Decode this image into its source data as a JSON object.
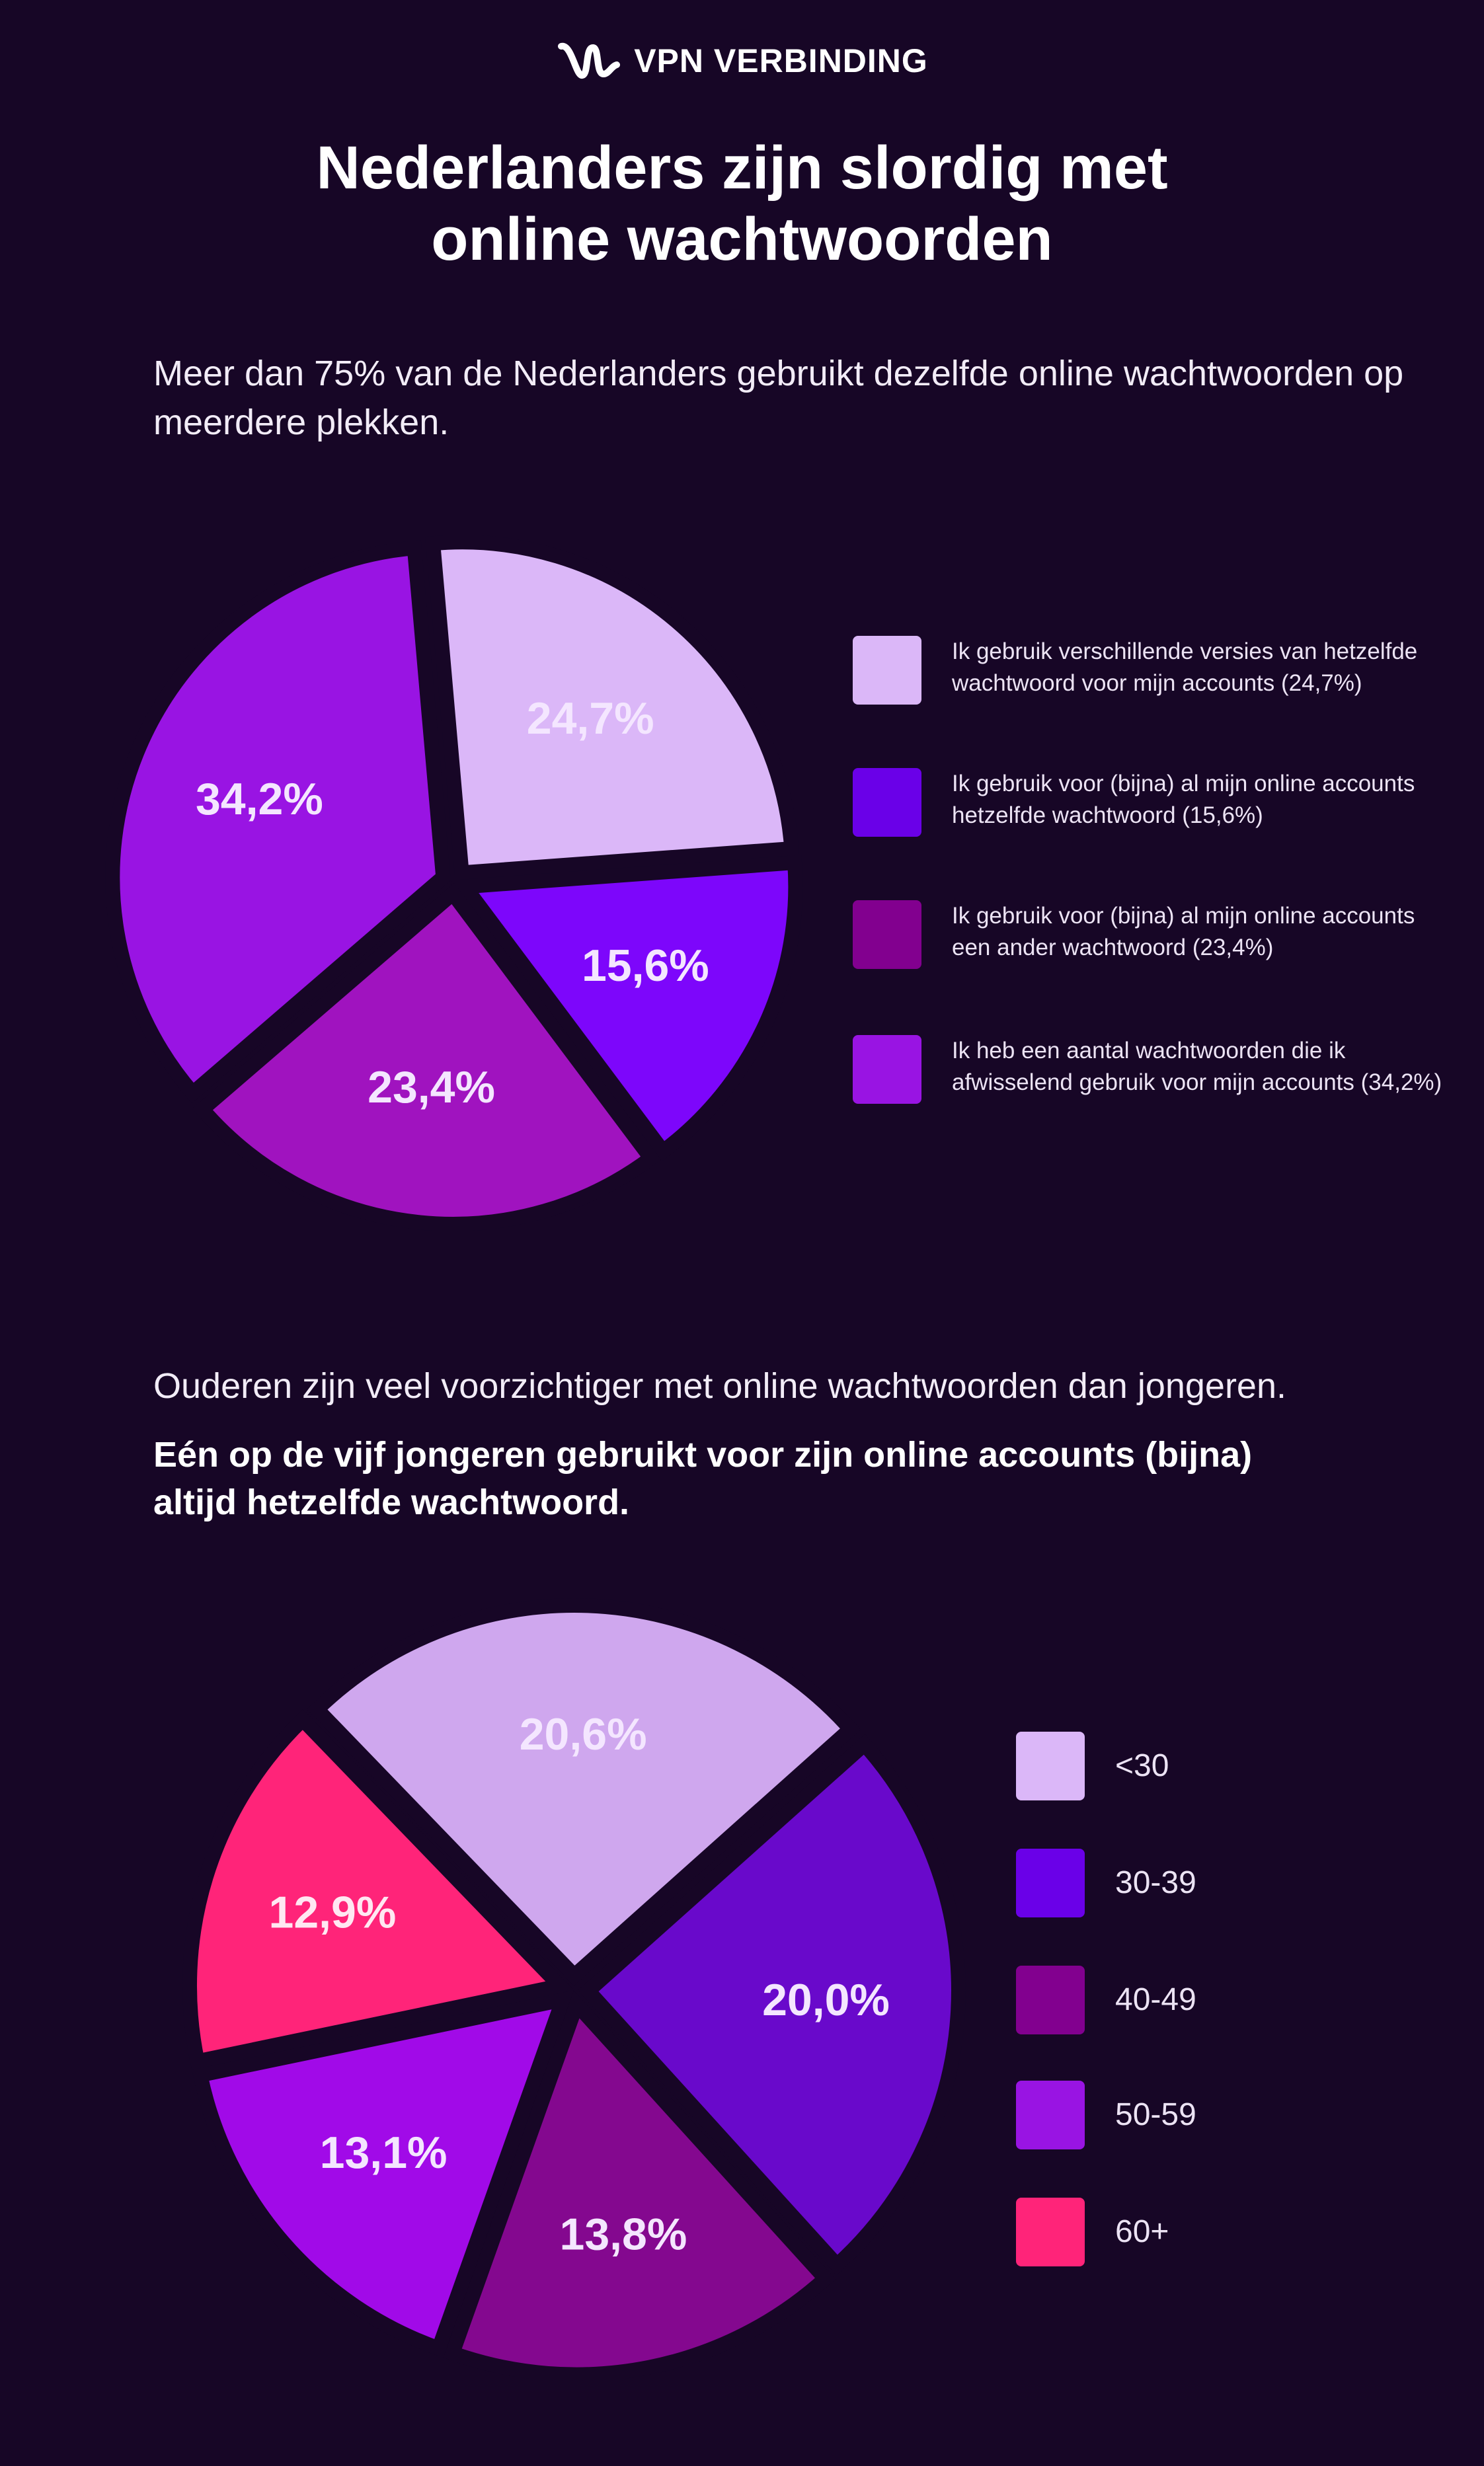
{
  "brand": {
    "name": "VPN VERBINDING"
  },
  "title_lines": [
    "Nederlanders zijn slordig met",
    "online wachtwoorden"
  ],
  "intro": "Meer dan 75% van de Nederlanders gebruikt dezelfde online wachtwoorden op meerdere plekken.",
  "section2": {
    "text": "Ouderen zijn veel voorzichtiger met online wachtwoorden dan jongeren.",
    "bold_text": "Eén op de vijf jongeren gebruikt voor zijn online accounts (bijna) altijd hetzelfde wachtwoord."
  },
  "colors": {
    "background": "#170626",
    "text": "#ffffff"
  },
  "chart_data": [
    {
      "type": "pie",
      "start_angle_deg": -5,
      "slices": [
        {
          "label": "Ik gebruik verschillende versies van hetzelfde wachtwoord voor mijn accounts (24,7%)",
          "value": 24.7,
          "value_label": "24,7%",
          "color": "#dbb7f8",
          "label_color": "#f4e6ff"
        },
        {
          "label": "Ik gebruik voor (bijna) al mijn online accounts hetzelfde wachtwoord (15,6%)",
          "value": 15.6,
          "value_label": "15,6%",
          "color": "#7d06fb",
          "label_color": "#f4e6ff"
        },
        {
          "label": "Ik gebruik voor (bijna) al mijn online accounts een ander wachtwoord (23,4%)",
          "value": 23.4,
          "value_label": "23,4%",
          "color": "#a013bf",
          "label_color": "#f4e6ff"
        },
        {
          "label": "Ik heb een aantal wachtwoorden die ik afwisselend gebruik voor mijn accounts (34,2%)",
          "value": 34.2,
          "value_label": "34,2%",
          "color": "#9914e3",
          "label_color": "#f4e6ff"
        }
      ],
      "legend_colors": [
        "#dbb7f8",
        "#6a00e8",
        "#82008f",
        "#9914e3"
      ]
    },
    {
      "type": "pie",
      "start_angle_deg": -44,
      "slices": [
        {
          "label": "<30",
          "value": 20.6,
          "value_label": "20,6%",
          "color": "#cfa7ee",
          "label_color": "#f4e6ff"
        },
        {
          "label": "30-39",
          "value": 20.0,
          "value_label": "20,0%",
          "color": "#6909cb",
          "label_color": "#f4e6ff"
        },
        {
          "label": "40-49",
          "value": 13.8,
          "value_label": "13,8%",
          "color": "#84088f",
          "label_color": "#f4e6ff"
        },
        {
          "label": "50-59",
          "value": 13.1,
          "value_label": "13,1%",
          "color": "#a10ae8",
          "label_color": "#f4e6ff"
        },
        {
          "label": "60+",
          "value": 12.9,
          "value_label": "12,9%",
          "color": "#ff2479",
          "label_color": "#ffe8f2"
        }
      ],
      "legend_colors": [
        "#dbb7f8",
        "#6a00e8",
        "#82008f",
        "#9914e3",
        "#ff2479"
      ]
    }
  ]
}
